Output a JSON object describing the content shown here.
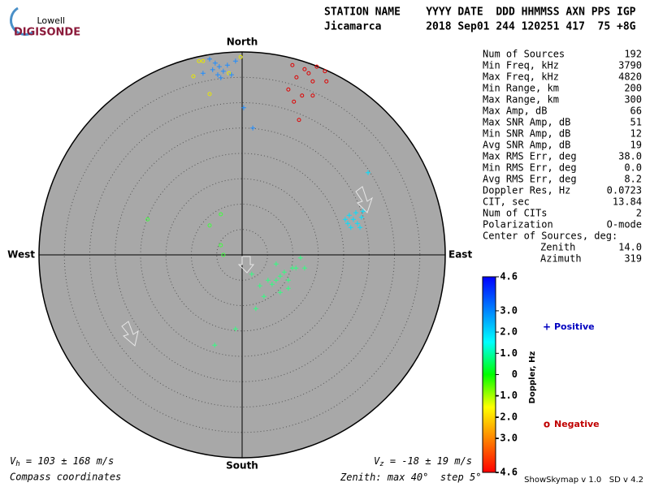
{
  "logo": {
    "top": "Lowell",
    "bottom": "DIGISONDE"
  },
  "header": {
    "line1": "STATION NAME    YYYY DATE  DDD HHMMSS AXN PPS IGP",
    "line2": "Jicamarca       2018 Sep01 244 120251 417  75 +8G"
  },
  "stats": [
    [
      "Num of Sources",
      "192"
    ],
    [
      "Min Freq, kHz",
      "3790"
    ],
    [
      "Max Freq, kHz",
      "4820"
    ],
    [
      "Min Range, km",
      "200"
    ],
    [
      "Max Range, km",
      "300"
    ],
    [
      "Max Amp, dB",
      "66"
    ],
    [
      "Max SNR Amp, dB",
      "51"
    ],
    [
      "Min SNR Amp, dB",
      "12"
    ],
    [
      "Avg SNR Amp, dB",
      "19"
    ],
    [
      "Max RMS Err, deg",
      "38.0"
    ],
    [
      "Min RMS Err, deg",
      "0.0"
    ],
    [
      "Avg RMS Err, deg",
      "8.2"
    ],
    [
      "Doppler Res, Hz",
      "0.0723"
    ],
    [
      "CIT, sec",
      "13.84"
    ],
    [
      "Num of CITs",
      "2"
    ],
    [
      "Polarization",
      "O-mode"
    ]
  ],
  "center": {
    "title": "Center of Sources, deg:",
    "zenith_label": "Zenith",
    "zenith": "14.0",
    "azimuth_label": "Azimuth",
    "azimuth": "319"
  },
  "chart_data": {
    "type": "skymap",
    "compass": {
      "north": "North",
      "south": "South",
      "east": "East",
      "west": "West"
    },
    "zenith_text": {
      "prefix": "Zenith: max ",
      "max": 40,
      "mid": "°  step ",
      "step": 5,
      "suffix": "°"
    },
    "coordinates": "Compass coordinates",
    "vh": {
      "symbol": "V",
      "sub": "h",
      "text": " = 103 ± 168 m/s"
    },
    "vz": {
      "symbol": "V",
      "sub": "z",
      "text": " = -18 ± 19 m/s"
    },
    "colorbar": {
      "label": "Doppler, Hz",
      "clim": [
        -4.6,
        4.6
      ],
      "colors": [
        "#ff0000",
        "#ff8000",
        "#ffff00",
        "#00ff00",
        "#00ffff",
        "#0080ff",
        "#0000ff"
      ],
      "ticks": [
        4.6,
        {
          "value": 3,
          "label": "3.0"
        },
        {
          "value": 2,
          "label": "2.0"
        },
        {
          "value": 1,
          "label": "1.0"
        },
        0,
        {
          "value": -1,
          "label": "-1.0"
        },
        {
          "value": -2,
          "label": "-2.0"
        },
        {
          "value": -3,
          "label": "-3.0"
        },
        -4.6
      ]
    },
    "legend": [
      {
        "marker": "+",
        "label": "Positive",
        "color": "#0000c0"
      },
      {
        "marker": "o",
        "label": "Negative",
        "color": "#c00000"
      }
    ],
    "groups": [
      {
        "marker": "o",
        "doppler": -3.5,
        "color": "#e00000",
        "x": [
          9.9,
          12.3,
          14.7,
          16.3,
          10.7,
          13.9,
          16.6,
          9.1,
          11.8,
          13.9,
          10.2,
          11.2,
          13.1
        ],
        "y": [
          37.4,
          36.6,
          37.1,
          36.2,
          35.0,
          34.2,
          34.2,
          32.6,
          31.4,
          31.4,
          30.2,
          26.6,
          35.8
        ]
      },
      {
        "marker": "o",
        "doppler": -1.2,
        "color": "#e8e800",
        "x": [
          -8.5,
          -7.7,
          -9.6,
          -6.4,
          -2.6,
          -0.3
        ],
        "y": [
          38.2,
          38.2,
          35.2,
          31.7,
          35.8,
          39.0
        ]
      },
      {
        "marker": "+",
        "doppler": 2.3,
        "color": "#1e8cff",
        "x": [
          -6.4,
          -5.3,
          -4.5,
          -5.8,
          -3.7,
          -4.8,
          -2.9,
          -7.7,
          -4.2,
          -2.1,
          -1.3,
          0.3,
          2.1
        ],
        "y": [
          38.6,
          37.8,
          37.1,
          36.5,
          36.2,
          35.5,
          37.4,
          35.8,
          34.9,
          35.5,
          38.2,
          29.0,
          25.0
        ]
      },
      {
        "marker": "+",
        "doppler": 1.3,
        "color": "#00e0ff",
        "x": [
          24.8,
          21.1,
          21.9,
          22.7,
          20.8,
          23.5,
          21.4,
          22.4,
          23.2,
          20.3,
          23.8
        ],
        "y": [
          16.2,
          7.8,
          7.0,
          6.2,
          6.2,
          7.4,
          5.4,
          8.3,
          5.4,
          7.0,
          8.6
        ]
      },
      {
        "marker": "o",
        "doppler": 0.3,
        "color": "#40ff40",
        "x": [
          -18.6,
          -6.4,
          -4.2,
          -4.2,
          -3.7
        ],
        "y": [
          7.0,
          5.8,
          8.0,
          1.9,
          0.0
        ]
      },
      {
        "marker": "+",
        "doppler": 0.5,
        "color": "#30ff80",
        "x": [
          7.5,
          6.7,
          8.3,
          5.9,
          9.1,
          5.1,
          9.9,
          11.5,
          10.6,
          12.3,
          3.5,
          7.5,
          4.3,
          2.7,
          1.9,
          -1.3,
          -5.4,
          6.7,
          9.1
        ],
        "y": [
          -4.2,
          -5.0,
          -3.4,
          -5.8,
          -5.0,
          -5.0,
          -2.6,
          -0.6,
          -2.6,
          -2.6,
          -6.1,
          -7.4,
          -8.2,
          -10.6,
          -3.8,
          -14.6,
          -17.8,
          -1.8,
          -6.6
        ]
      }
    ]
  },
  "footer": "ShowSkymap v 1.0   SD v 4.2"
}
